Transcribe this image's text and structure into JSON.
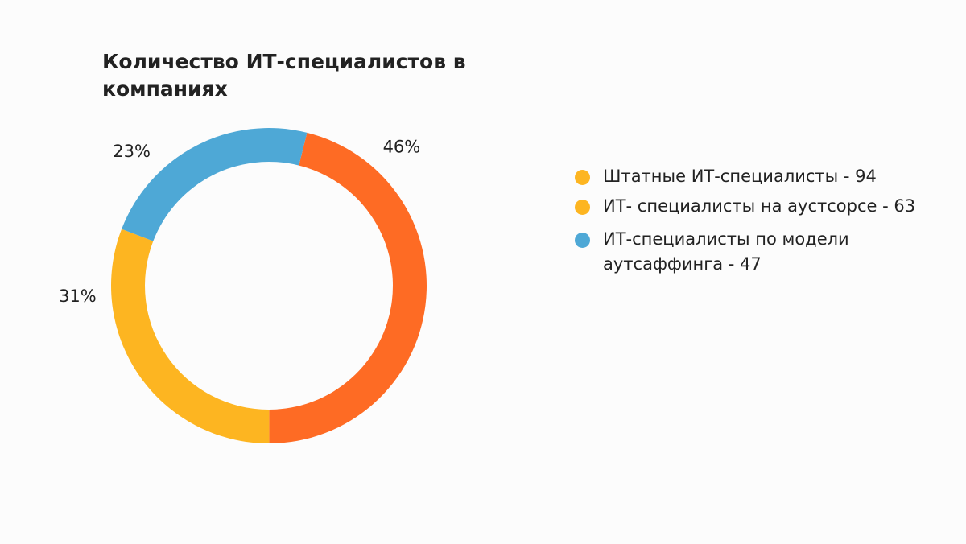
{
  "chart_data": {
    "type": "pie",
    "title": "Количество ИТ-специалистов в компаниях",
    "series": [
      {
        "name": "Штатные ИТ-специалисты - 94",
        "value": 94,
        "percent_label": "46%",
        "color": "#fe6b24"
      },
      {
        "name": "ИТ- специалисты на аустсорсе - 63",
        "value": 63,
        "percent_label": "31%",
        "color": "#fdb521"
      },
      {
        "name": "ИТ-специалисты по модели аутсаффинга - 47",
        "value": 47,
        "percent_label": "23%",
        "color": "#4ea8d6"
      }
    ],
    "legend_placement": "right"
  },
  "legend": {
    "dot_colors": [
      "#fdb521",
      "#fdb521",
      "#4ea8d6"
    ]
  }
}
